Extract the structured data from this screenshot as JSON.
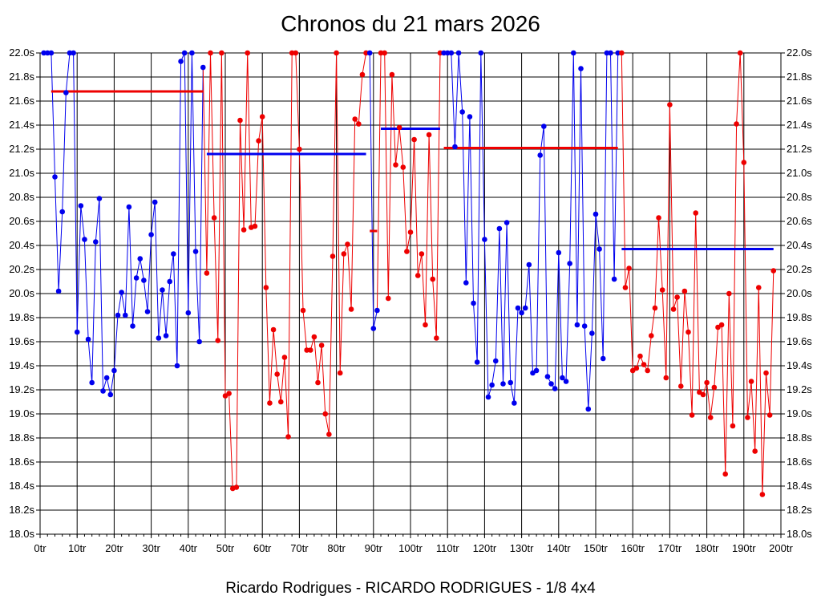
{
  "chart_data": {
    "type": "line",
    "title": "Chronos du 21 mars 2026",
    "caption": "Ricardo Rodrigues - RICARDO RODRIGUES - 1/8 4x4",
    "xlim": [
      0,
      200
    ],
    "ylim": [
      18.0,
      22.0
    ],
    "x_ticks": [
      "0tr",
      "10tr",
      "20tr",
      "30tr",
      "40tr",
      "50tr",
      "60tr",
      "70tr",
      "80tr",
      "90tr",
      "100tr",
      "110tr",
      "120tr",
      "130tr",
      "140tr",
      "150tr",
      "160tr",
      "170tr",
      "180tr",
      "190tr",
      "200tr"
    ],
    "y_ticks": [
      "18.0s",
      "18.2s",
      "18.4s",
      "18.6s",
      "18.8s",
      "19.0s",
      "19.2s",
      "19.4s",
      "19.6s",
      "19.8s",
      "20.0s",
      "20.2s",
      "20.4s",
      "20.6s",
      "20.8s",
      "21.0s",
      "21.2s",
      "21.4s",
      "21.6s",
      "21.8s",
      "22.0s"
    ],
    "grid": true,
    "colors": {
      "blue": "#0000ee",
      "red": "#ee0000"
    },
    "segments": [
      {
        "color": "blue",
        "mean": 21.68,
        "mean_color": "red",
        "mean_range": [
          3,
          44
        ],
        "points": [
          [
            1,
            22.0
          ],
          [
            2,
            22.0
          ],
          [
            3,
            22.0
          ],
          [
            4,
            20.97
          ],
          [
            5,
            20.02
          ],
          [
            6,
            20.68
          ],
          [
            7,
            21.67
          ],
          [
            8,
            22.0
          ],
          [
            9,
            22.0
          ],
          [
            10,
            19.68
          ],
          [
            11,
            20.73
          ],
          [
            12,
            20.45
          ],
          [
            13,
            19.62
          ],
          [
            14,
            19.26
          ],
          [
            15,
            20.43
          ],
          [
            16,
            20.79
          ],
          [
            17,
            19.19
          ],
          [
            18,
            19.3
          ],
          [
            19,
            19.16
          ],
          [
            20,
            19.36
          ],
          [
            21,
            19.82
          ],
          [
            22,
            20.01
          ],
          [
            23,
            19.82
          ],
          [
            24,
            20.72
          ],
          [
            25,
            19.73
          ],
          [
            26,
            20.13
          ],
          [
            27,
            20.29
          ],
          [
            28,
            20.11
          ],
          [
            29,
            19.85
          ],
          [
            30,
            20.49
          ],
          [
            31,
            20.76
          ],
          [
            32,
            19.63
          ],
          [
            33,
            20.03
          ],
          [
            34,
            19.65
          ],
          [
            35,
            20.1
          ],
          [
            36,
            20.33
          ],
          [
            37,
            19.4
          ],
          [
            38,
            21.93
          ],
          [
            39,
            22.0
          ],
          [
            40,
            19.84
          ],
          [
            41,
            22.0
          ],
          [
            42,
            20.35
          ],
          [
            43,
            19.6
          ],
          [
            44,
            21.88
          ]
        ]
      },
      {
        "color": "red",
        "mean": 21.16,
        "mean_color": "blue",
        "mean_range": [
          45,
          88
        ],
        "points": [
          [
            45,
            20.17
          ],
          [
            46,
            22.0
          ],
          [
            47,
            20.63
          ],
          [
            48,
            19.61
          ],
          [
            49,
            22.0
          ],
          [
            50,
            19.15
          ],
          [
            51,
            19.17
          ],
          [
            52,
            18.38
          ],
          [
            53,
            18.39
          ],
          [
            54,
            21.44
          ],
          [
            55,
            20.53
          ],
          [
            56,
            22.0
          ],
          [
            57,
            20.55
          ],
          [
            58,
            20.56
          ],
          [
            59,
            21.27
          ],
          [
            60,
            21.47
          ],
          [
            61,
            20.05
          ],
          [
            62,
            19.09
          ],
          [
            63,
            19.7
          ],
          [
            64,
            19.33
          ],
          [
            65,
            19.1
          ],
          [
            66,
            19.47
          ],
          [
            67,
            18.81
          ],
          [
            68,
            22.0
          ],
          [
            69,
            22.0
          ],
          [
            70,
            21.2
          ],
          [
            71,
            19.86
          ],
          [
            72,
            19.53
          ],
          [
            73,
            19.53
          ],
          [
            74,
            19.64
          ],
          [
            75,
            19.26
          ],
          [
            76,
            19.57
          ],
          [
            77,
            19.0
          ],
          [
            78,
            18.83
          ],
          [
            79,
            20.31
          ],
          [
            80,
            22.0
          ],
          [
            81,
            19.34
          ],
          [
            82,
            20.33
          ],
          [
            83,
            20.41
          ],
          [
            84,
            19.87
          ],
          [
            85,
            21.45
          ],
          [
            86,
            21.41
          ],
          [
            87,
            21.82
          ],
          [
            88,
            22.0
          ]
        ]
      },
      {
        "color": "blue",
        "mean": 20.52,
        "mean_color": "red",
        "mean_range": [
          89,
          91
        ],
        "points": [
          [
            89,
            22.0
          ],
          [
            90,
            19.71
          ],
          [
            91,
            19.86
          ]
        ]
      },
      {
        "color": "red",
        "mean": 21.37,
        "mean_color": "blue",
        "mean_range": [
          92,
          108
        ],
        "points": [
          [
            92,
            22.0
          ],
          [
            93,
            22.0
          ],
          [
            94,
            19.96
          ],
          [
            95,
            21.82
          ],
          [
            96,
            21.07
          ],
          [
            97,
            21.38
          ],
          [
            98,
            21.05
          ],
          [
            99,
            20.35
          ],
          [
            100,
            20.51
          ],
          [
            101,
            21.28
          ],
          [
            102,
            20.15
          ],
          [
            103,
            20.33
          ],
          [
            104,
            19.74
          ],
          [
            105,
            21.32
          ],
          [
            106,
            20.12
          ],
          [
            107,
            19.63
          ],
          [
            108,
            22.0
          ]
        ]
      },
      {
        "color": "blue",
        "mean": 21.21,
        "mean_color": "red",
        "mean_range": [
          109,
          156
        ],
        "points": [
          [
            109,
            22.0
          ],
          [
            110,
            22.0
          ],
          [
            111,
            22.0
          ],
          [
            112,
            21.22
          ],
          [
            113,
            22.0
          ],
          [
            114,
            21.51
          ],
          [
            115,
            20.09
          ],
          [
            116,
            21.47
          ],
          [
            117,
            19.92
          ],
          [
            118,
            19.43
          ],
          [
            119,
            22.0
          ],
          [
            120,
            20.45
          ],
          [
            121,
            19.14
          ],
          [
            122,
            19.24
          ],
          [
            123,
            19.44
          ],
          [
            124,
            20.54
          ],
          [
            125,
            19.25
          ],
          [
            126,
            20.59
          ],
          [
            127,
            19.26
          ],
          [
            128,
            19.09
          ],
          [
            129,
            19.88
          ],
          [
            130,
            19.84
          ],
          [
            131,
            19.88
          ],
          [
            132,
            20.24
          ],
          [
            133,
            19.34
          ],
          [
            134,
            19.36
          ],
          [
            135,
            21.15
          ],
          [
            136,
            21.39
          ],
          [
            137,
            19.31
          ],
          [
            138,
            19.25
          ],
          [
            139,
            19.21
          ],
          [
            140,
            20.34
          ],
          [
            141,
            19.3
          ],
          [
            142,
            19.27
          ],
          [
            143,
            20.25
          ],
          [
            144,
            22.0
          ],
          [
            145,
            19.74
          ],
          [
            146,
            21.87
          ],
          [
            147,
            19.73
          ],
          [
            148,
            19.04
          ],
          [
            149,
            19.67
          ],
          [
            150,
            20.66
          ],
          [
            151,
            20.37
          ],
          [
            152,
            19.46
          ],
          [
            153,
            22.0
          ],
          [
            154,
            22.0
          ],
          [
            155,
            20.12
          ],
          [
            156,
            22.0
          ]
        ]
      },
      {
        "color": "red",
        "mean": 20.37,
        "mean_color": "blue",
        "mean_range": [
          157,
          198
        ],
        "points": [
          [
            157,
            22.0
          ],
          [
            158,
            20.05
          ],
          [
            159,
            20.21
          ],
          [
            160,
            19.36
          ],
          [
            161,
            19.38
          ],
          [
            162,
            19.48
          ],
          [
            163,
            19.41
          ],
          [
            164,
            19.36
          ],
          [
            165,
            19.65
          ],
          [
            166,
            19.88
          ],
          [
            167,
            20.63
          ],
          [
            168,
            20.03
          ],
          [
            169,
            19.3
          ],
          [
            170,
            21.57
          ],
          [
            171,
            19.87
          ],
          [
            172,
            19.97
          ],
          [
            173,
            19.23
          ],
          [
            174,
            20.02
          ],
          [
            175,
            19.68
          ],
          [
            176,
            18.99
          ],
          [
            177,
            20.67
          ],
          [
            178,
            19.18
          ],
          [
            179,
            19.16
          ],
          [
            180,
            19.26
          ],
          [
            181,
            18.97
          ],
          [
            182,
            19.22
          ],
          [
            183,
            19.72
          ],
          [
            184,
            19.74
          ],
          [
            185,
            18.5
          ],
          [
            186,
            20.0
          ],
          [
            187,
            18.9
          ],
          [
            188,
            21.41
          ],
          [
            189,
            22.0
          ],
          [
            190,
            21.09
          ],
          [
            191,
            18.97
          ],
          [
            192,
            19.27
          ],
          [
            193,
            18.69
          ],
          [
            194,
            20.05
          ],
          [
            195,
            18.33
          ],
          [
            196,
            19.34
          ],
          [
            197,
            18.99
          ],
          [
            198,
            20.19
          ]
        ]
      }
    ]
  }
}
